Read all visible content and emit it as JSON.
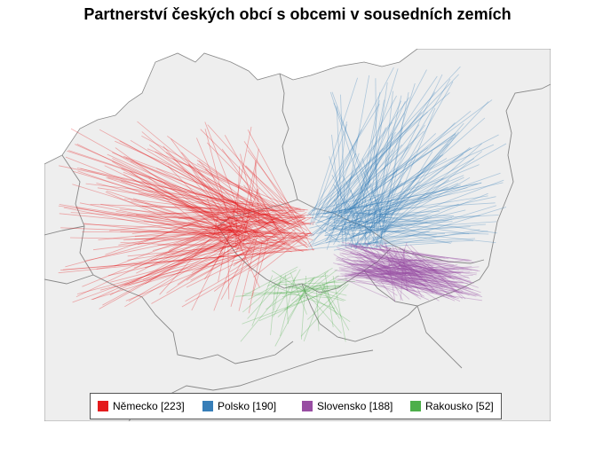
{
  "title": "Partnerství českých obcí s obcemi v sousedních zemích",
  "colors": {
    "land": "#eeeeee",
    "border": "#888888",
    "germany": "#e41a1c",
    "poland": "#377eb8",
    "slovakia": "#984ea3",
    "austria": "#4daf4a"
  },
  "legend": [
    {
      "label": "Německo [223]",
      "color": "#e41a1c"
    },
    {
      "label": "Polsko [190]",
      "color": "#377eb8"
    },
    {
      "label": "Slovensko [188]",
      "color": "#984ea3"
    },
    {
      "label": "Rakousko [52]",
      "color": "#4daf4a"
    }
  ]
}
